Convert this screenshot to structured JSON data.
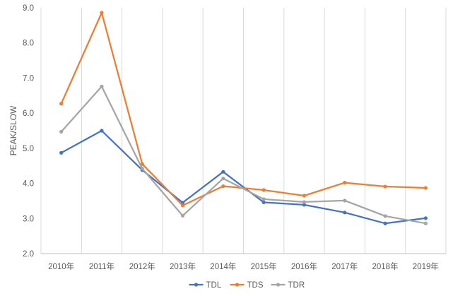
{
  "chart_data": {
    "type": "line",
    "categories": [
      "2010年",
      "2011年",
      "2012年",
      "2013年",
      "2014年",
      "2015年",
      "2016年",
      "2017年",
      "2018年",
      "2019年"
    ],
    "series": [
      {
        "name": "TDL",
        "color": "#4472C4",
        "values": [
          4.87,
          5.5,
          4.38,
          3.45,
          4.33,
          3.46,
          3.39,
          3.17,
          2.86,
          3.01
        ]
      },
      {
        "name": "TDS",
        "color": "#ED7D31",
        "values": [
          6.27,
          8.86,
          4.55,
          3.37,
          3.92,
          3.81,
          3.65,
          4.02,
          3.91,
          3.87
        ]
      },
      {
        "name": "TDR",
        "color": "#A5A5A5",
        "values": [
          5.47,
          6.76,
          4.42,
          3.08,
          4.14,
          3.55,
          3.47,
          3.51,
          3.07,
          2.86
        ]
      }
    ],
    "ylabel": "PEAK/SLOW",
    "ylim": [
      2.0,
      9.0
    ],
    "yticks": [
      "2.0",
      "3.0",
      "4.0",
      "5.0",
      "6.0",
      "7.0",
      "8.0",
      "9.0"
    ],
    "grid": "vertical-category-lines",
    "legend": "bottom-center"
  }
}
